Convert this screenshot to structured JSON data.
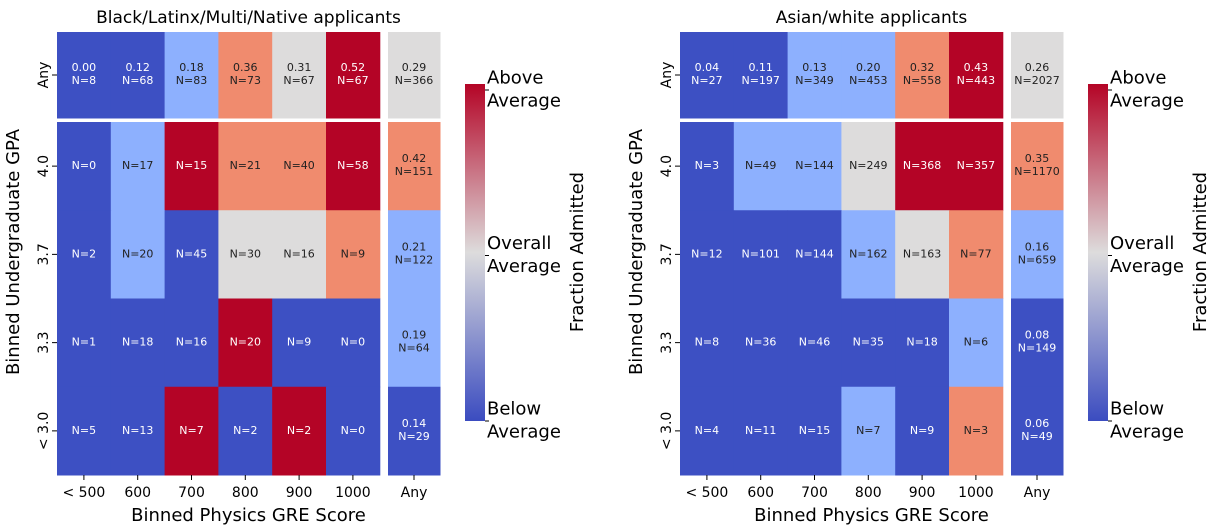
{
  "chart_data": [
    {
      "type": "heatmap",
      "title": "Black/Latinx/Multi/Native applicants",
      "xlabel": "Binned Physics GRE Score",
      "ylabel": "Binned Undergraduate GPA",
      "colorbar_label": "Fraction Admitted",
      "colorbar_labels": [
        [
          "Above",
          "Average"
        ],
        [
          "Overall",
          "Average"
        ],
        [
          "Below",
          "Average"
        ]
      ],
      "colorbar_colors": [
        "#b40426",
        "#dddcdc",
        "#3b4cc0"
      ],
      "x_categories": [
        "< 500",
        "600",
        "700",
        "800",
        "900",
        "1000",
        "Any"
      ],
      "y_categories": [
        "Any",
        "4.0",
        "3.7",
        "3.3",
        "< 3.0"
      ],
      "cells": [
        [
          {
            "fraction": 0,
            "fraction_label": "0.00",
            "n": 8,
            "n_label": "N=8",
            "color": "#3d50c3"
          },
          {
            "fraction": 0.12,
            "fraction_label": "0.12",
            "n": 68,
            "n_label": "N=68",
            "color": "#3d50c3"
          },
          {
            "fraction": 0.18,
            "fraction_label": "0.18",
            "n": 83,
            "n_label": "N=83",
            "color": "#8db0fe"
          },
          {
            "fraction": 0.36,
            "fraction_label": "0.36",
            "n": 73,
            "n_label": "N=73",
            "color": "#f08b6e"
          },
          {
            "fraction": 0.31,
            "fraction_label": "0.31",
            "n": 67,
            "n_label": "N=67",
            "color": "#dddcdc"
          },
          {
            "fraction": 0.52,
            "fraction_label": "0.52",
            "n": 67,
            "n_label": "N=67",
            "color": "#b40426"
          },
          {
            "fraction": 0.29,
            "fraction_label": "0.29",
            "n": 366,
            "n_label": "N=366",
            "color": "#dddcdc"
          }
        ],
        [
          {
            "n": 0,
            "n_label": "N=0",
            "color": "#3d50c3"
          },
          {
            "n": 17,
            "n_label": "N=17",
            "color": "#8db0fe"
          },
          {
            "n": 15,
            "n_label": "N=15",
            "color": "#b40426"
          },
          {
            "n": 21,
            "n_label": "N=21",
            "color": "#f08b6e"
          },
          {
            "n": 40,
            "n_label": "N=40",
            "color": "#f08b6e"
          },
          {
            "n": 58,
            "n_label": "N=58",
            "color": "#b40426"
          },
          {
            "fraction": 0.42,
            "fraction_label": "0.42",
            "n": 151,
            "n_label": "N=151",
            "color": "#f08b6e"
          }
        ],
        [
          {
            "n": 2,
            "n_label": "N=2",
            "color": "#3d50c3"
          },
          {
            "n": 20,
            "n_label": "N=20",
            "color": "#8db0fe"
          },
          {
            "n": 45,
            "n_label": "N=45",
            "color": "#3d50c3"
          },
          {
            "n": 30,
            "n_label": "N=30",
            "color": "#dddcdc"
          },
          {
            "n": 16,
            "n_label": "N=16",
            "color": "#dddcdc"
          },
          {
            "n": 9,
            "n_label": "N=9",
            "color": "#f08b6e"
          },
          {
            "fraction": 0.21,
            "fraction_label": "0.21",
            "n": 122,
            "n_label": "N=122",
            "color": "#8db0fe"
          }
        ],
        [
          {
            "n": 1,
            "n_label": "N=1",
            "color": "#3d50c3"
          },
          {
            "n": 18,
            "n_label": "N=18",
            "color": "#3d50c3"
          },
          {
            "n": 16,
            "n_label": "N=16",
            "color": "#3d50c3"
          },
          {
            "n": 20,
            "n_label": "N=20",
            "color": "#b40426"
          },
          {
            "n": 9,
            "n_label": "N=9",
            "color": "#3d50c3"
          },
          {
            "n": 0,
            "n_label": "N=0",
            "color": "#3d50c3"
          },
          {
            "fraction": 0.19,
            "fraction_label": "0.19",
            "n": 64,
            "n_label": "N=64",
            "color": "#8db0fe"
          }
        ],
        [
          {
            "n": 5,
            "n_label": "N=5",
            "color": "#3d50c3"
          },
          {
            "n": 13,
            "n_label": "N=13",
            "color": "#3d50c3"
          },
          {
            "n": 7,
            "n_label": "N=7",
            "color": "#b40426"
          },
          {
            "n": 2,
            "n_label": "N=2",
            "color": "#3d50c3"
          },
          {
            "n": 2,
            "n_label": "N=2",
            "color": "#b40426"
          },
          {
            "n": 0,
            "n_label": "N=0",
            "color": "#3d50c3"
          },
          {
            "fraction": 0.14,
            "fraction_label": "0.14",
            "n": 29,
            "n_label": "N=29",
            "color": "#3d50c3"
          }
        ]
      ]
    },
    {
      "type": "heatmap",
      "title": "Asian/white applicants",
      "xlabel": "Binned Physics GRE Score",
      "ylabel": "Binned Undergraduate GPA",
      "colorbar_label": "Fraction Admitted",
      "colorbar_labels": [
        [
          "Above",
          "Average"
        ],
        [
          "Overall",
          "Average"
        ],
        [
          "Below",
          "Average"
        ]
      ],
      "colorbar_colors": [
        "#b40426",
        "#dddcdc",
        "#3b4cc0"
      ],
      "x_categories": [
        "< 500",
        "600",
        "700",
        "800",
        "900",
        "1000",
        "Any"
      ],
      "y_categories": [
        "Any",
        "4.0",
        "3.7",
        "3.3",
        "< 3.0"
      ],
      "cells": [
        [
          {
            "fraction": 0.04,
            "fraction_label": "0.04",
            "n": 27,
            "n_label": "N=27",
            "color": "#3d50c3"
          },
          {
            "fraction": 0.11,
            "fraction_label": "0.11",
            "n": 197,
            "n_label": "N=197",
            "color": "#3d50c3"
          },
          {
            "fraction": 0.13,
            "fraction_label": "0.13",
            "n": 349,
            "n_label": "N=349",
            "color": "#8db0fe"
          },
          {
            "fraction": 0.2,
            "fraction_label": "0.20",
            "n": 453,
            "n_label": "N=453",
            "color": "#8db0fe"
          },
          {
            "fraction": 0.32,
            "fraction_label": "0.32",
            "n": 558,
            "n_label": "N=558",
            "color": "#f08b6e"
          },
          {
            "fraction": 0.43,
            "fraction_label": "0.43",
            "n": 443,
            "n_label": "N=443",
            "color": "#b40426"
          },
          {
            "fraction": 0.26,
            "fraction_label": "0.26",
            "n": 2027,
            "n_label": "N=2027",
            "color": "#dddcdc"
          }
        ],
        [
          {
            "n": 3,
            "n_label": "N=3",
            "color": "#3d50c3"
          },
          {
            "n": 49,
            "n_label": "N=49",
            "color": "#8db0fe"
          },
          {
            "n": 144,
            "n_label": "N=144",
            "color": "#8db0fe"
          },
          {
            "n": 249,
            "n_label": "N=249",
            "color": "#dddcdc"
          },
          {
            "n": 368,
            "n_label": "N=368",
            "color": "#b40426"
          },
          {
            "n": 357,
            "n_label": "N=357",
            "color": "#b40426"
          },
          {
            "fraction": 0.35,
            "fraction_label": "0.35",
            "n": 1170,
            "n_label": "N=1170",
            "color": "#f08b6e"
          }
        ],
        [
          {
            "n": 12,
            "n_label": "N=12",
            "color": "#3d50c3"
          },
          {
            "n": 101,
            "n_label": "N=101",
            "color": "#3d50c3"
          },
          {
            "n": 144,
            "n_label": "N=144",
            "color": "#3d50c3"
          },
          {
            "n": 162,
            "n_label": "N=162",
            "color": "#8db0fe"
          },
          {
            "n": 163,
            "n_label": "N=163",
            "color": "#dddcdc"
          },
          {
            "n": 77,
            "n_label": "N=77",
            "color": "#f08b6e"
          },
          {
            "fraction": 0.16,
            "fraction_label": "0.16",
            "n": 659,
            "n_label": "N=659",
            "color": "#8db0fe"
          }
        ],
        [
          {
            "n": 8,
            "n_label": "N=8",
            "color": "#3d50c3"
          },
          {
            "n": 36,
            "n_label": "N=36",
            "color": "#3d50c3"
          },
          {
            "n": 46,
            "n_label": "N=46",
            "color": "#3d50c3"
          },
          {
            "n": 35,
            "n_label": "N=35",
            "color": "#3d50c3"
          },
          {
            "n": 18,
            "n_label": "N=18",
            "color": "#3d50c3"
          },
          {
            "n": 6,
            "n_label": "N=6",
            "color": "#8db0fe"
          },
          {
            "fraction": 0.08,
            "fraction_label": "0.08",
            "n": 149,
            "n_label": "N=149",
            "color": "#3d50c3"
          }
        ],
        [
          {
            "n": 4,
            "n_label": "N=4",
            "color": "#3d50c3"
          },
          {
            "n": 11,
            "n_label": "N=11",
            "color": "#3d50c3"
          },
          {
            "n": 15,
            "n_label": "N=15",
            "color": "#3d50c3"
          },
          {
            "n": 7,
            "n_label": "N=7",
            "color": "#8db0fe"
          },
          {
            "n": 9,
            "n_label": "N=9",
            "color": "#3d50c3"
          },
          {
            "n": 3,
            "n_label": "N=3",
            "color": "#f08b6e"
          },
          {
            "fraction": 0.06,
            "fraction_label": "0.06",
            "n": 49,
            "n_label": "N=49",
            "color": "#3d50c3"
          }
        ]
      ]
    }
  ]
}
